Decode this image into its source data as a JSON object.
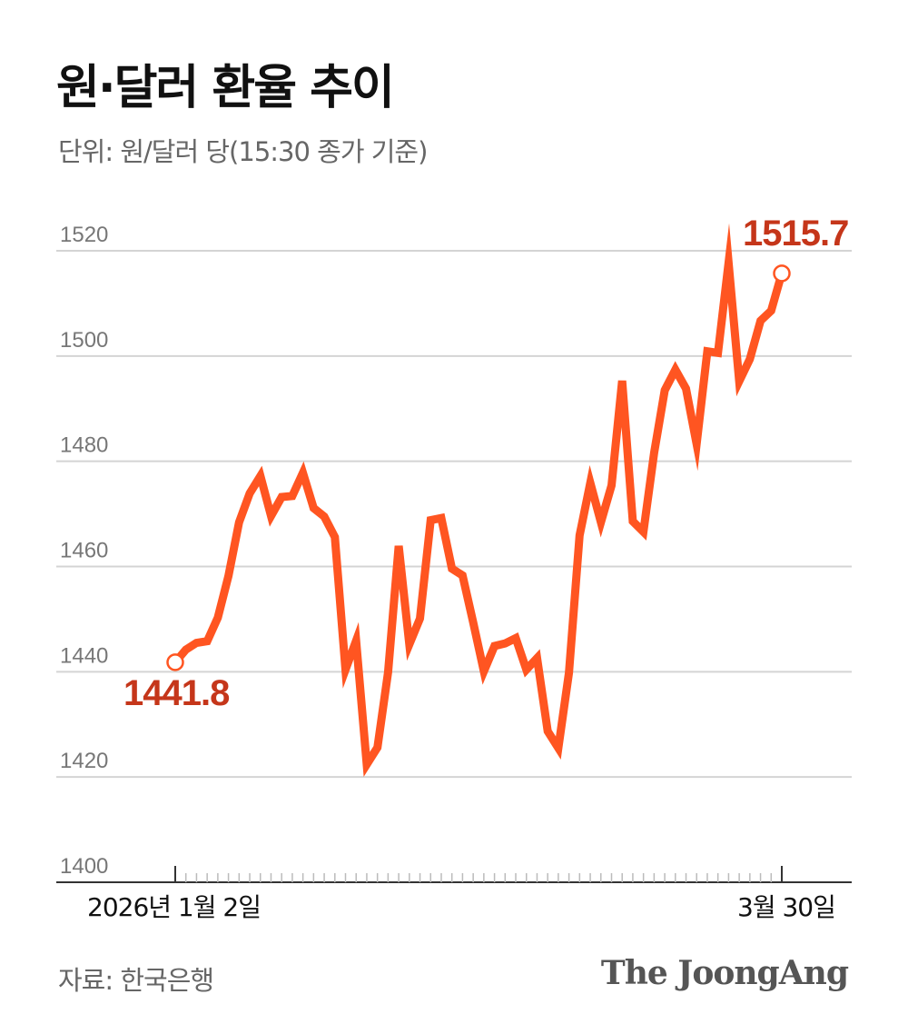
{
  "title": "원·달러 환율 추이",
  "subtitle": "단위: 원/달러 당(15:30 종가 기준)",
  "source": "자료: 한국은행",
  "brand": "The JoongAng",
  "colors": {
    "line": "#ff5521",
    "annotation": "#c5361a",
    "grid": "#d4d4d4",
    "axis": "#333333",
    "ticks": "#bbbbbb"
  },
  "chart_data": {
    "type": "line",
    "title": "원·달러 환율 추이",
    "ylabel": "원/달러",
    "ylim": [
      1400,
      1520
    ],
    "yticks": [
      1400,
      1420,
      1440,
      1460,
      1480,
      1500,
      1520
    ],
    "grid": true,
    "x_start_label": "2026년 1월 2일",
    "x_end_label": "3월 30일",
    "start_annotation": "1441.8",
    "end_annotation": "1515.7",
    "series": [
      {
        "name": "원·달러 환율",
        "values": [
          1441.8,
          1444.2,
          1445.5,
          1445.8,
          1450.3,
          1458.2,
          1468.4,
          1473.9,
          1477.2,
          1469.6,
          1473.2,
          1473.4,
          1477.8,
          1471.1,
          1469.5,
          1465.6,
          1440.4,
          1445.9,
          1422.4,
          1425.6,
          1439.9,
          1463.9,
          1445.2,
          1450.1,
          1468.8,
          1469.2,
          1459.6,
          1458.3,
          1449.4,
          1440.1,
          1444.9,
          1445.4,
          1446.4,
          1440.4,
          1442.6,
          1428.7,
          1425.5,
          1439.8,
          1465.9,
          1475.9,
          1468.4,
          1475.4,
          1495.3,
          1468.6,
          1466.6,
          1481.6,
          1493.5,
          1497.4,
          1493.8,
          1483.3,
          1500.9,
          1500.6,
          1517.7,
          1495.2,
          1499.4,
          1506.7,
          1508.6,
          1515.7
        ]
      }
    ]
  }
}
